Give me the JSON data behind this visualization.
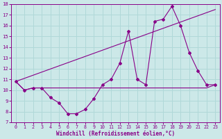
{
  "xlabel": "Windchill (Refroidissement éolien,°C)",
  "xlim": [
    -0.5,
    23.5
  ],
  "ylim": [
    7,
    18
  ],
  "xticks": [
    0,
    1,
    2,
    3,
    4,
    5,
    6,
    7,
    8,
    9,
    10,
    11,
    12,
    13,
    14,
    15,
    16,
    17,
    18,
    19,
    20,
    21,
    22,
    23
  ],
  "yticks": [
    7,
    8,
    9,
    10,
    11,
    12,
    13,
    14,
    15,
    16,
    17,
    18
  ],
  "bg_color": "#cce8e8",
  "line_color": "#880088",
  "grid_color": "#b0d8d8",
  "line1_x": [
    0,
    1,
    2,
    3,
    4,
    5,
    6,
    7,
    8,
    9,
    10,
    11,
    12,
    13,
    14,
    15,
    16,
    17,
    18,
    19,
    20,
    21,
    22,
    23
  ],
  "line1_y": [
    10.8,
    10.0,
    10.2,
    10.2,
    9.3,
    8.8,
    7.8,
    7.8,
    8.2,
    9.2,
    10.5,
    11.0,
    12.5,
    15.5,
    11.0,
    10.5,
    16.4,
    16.6,
    17.8,
    16.0,
    13.5,
    11.8,
    10.5,
    10.5
  ],
  "line2_x": [
    0,
    1,
    2,
    3,
    4,
    5,
    6,
    7,
    8,
    9,
    10,
    11,
    12,
    13,
    14,
    15,
    16,
    17,
    18,
    19,
    20,
    21,
    22,
    23
  ],
  "line2_y": [
    10.8,
    10.0,
    10.2,
    10.2,
    10.2,
    10.2,
    10.2,
    10.2,
    10.2,
    10.2,
    10.2,
    10.2,
    10.2,
    10.2,
    10.2,
    10.2,
    10.2,
    10.2,
    10.2,
    10.2,
    10.2,
    10.2,
    10.2,
    10.5
  ],
  "line3_x": [
    0,
    23
  ],
  "line3_y": [
    10.8,
    17.5
  ]
}
